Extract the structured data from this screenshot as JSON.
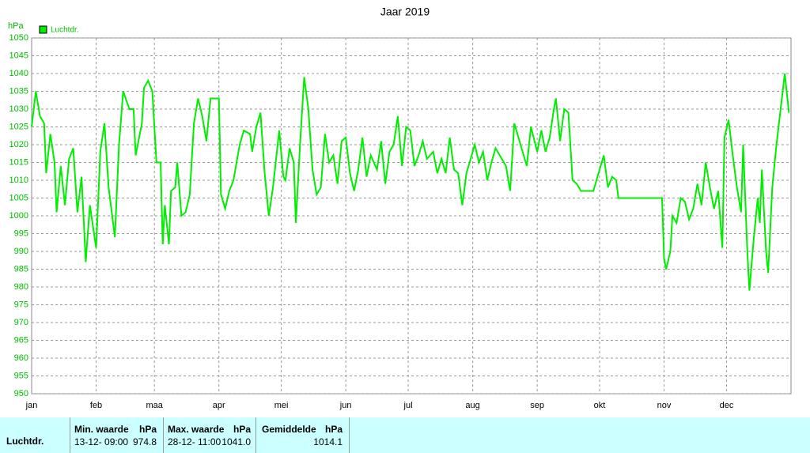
{
  "chart_data": {
    "type": "line",
    "title": "Jaar 2019",
    "y_label": "hPa",
    "xlim": [
      0,
      365
    ],
    "ylim": [
      950,
      1050
    ],
    "xticks": [
      {
        "value": 0,
        "label": "jan"
      },
      {
        "value": 31,
        "label": "feb"
      },
      {
        "value": 59,
        "label": "maa"
      },
      {
        "value": 90,
        "label": "apr"
      },
      {
        "value": 120,
        "label": "mei"
      },
      {
        "value": 151,
        "label": "jun"
      },
      {
        "value": 181,
        "label": "jul"
      },
      {
        "value": 212,
        "label": "aug"
      },
      {
        "value": 243,
        "label": "sep"
      },
      {
        "value": 273,
        "label": "okt"
      },
      {
        "value": 304,
        "label": "nov"
      },
      {
        "value": 334,
        "label": "dec"
      }
    ],
    "yticks": [
      950,
      955,
      960,
      965,
      970,
      975,
      980,
      985,
      990,
      995,
      1000,
      1005,
      1010,
      1015,
      1020,
      1025,
      1030,
      1035,
      1040,
      1045,
      1050
    ],
    "grid": true,
    "series": [
      {
        "name": "Luchtdr.",
        "color": "#00ee00",
        "x": [
          0,
          2,
          4,
          6,
          7,
          9,
          11,
          12,
          14,
          16,
          18,
          20,
          22,
          24,
          26,
          28,
          30,
          31,
          33,
          35,
          37,
          40,
          42,
          44,
          47,
          49,
          50,
          53,
          54,
          56,
          58,
          60,
          62,
          63,
          64,
          66,
          67,
          69,
          70,
          72,
          74,
          76,
          78,
          80,
          82,
          84,
          86,
          90,
          91,
          93,
          95,
          97,
          100,
          102,
          105,
          106,
          108,
          110,
          112,
          114,
          116,
          119,
          121,
          122,
          124,
          126,
          127,
          129,
          131,
          133,
          135,
          137,
          139,
          141,
          143,
          145,
          147,
          149,
          151,
          153,
          155,
          157,
          159,
          161,
          163,
          166,
          168,
          170,
          172,
          174,
          176,
          178,
          180,
          182,
          184,
          186,
          188,
          190,
          193,
          195,
          197,
          199,
          201,
          203,
          205,
          207,
          209,
          213,
          215,
          217,
          219,
          221,
          223,
          226,
          228,
          230,
          232,
          234,
          236,
          238,
          240,
          243,
          245,
          247,
          249,
          251,
          252,
          254,
          256,
          258,
          260,
          262,
          264,
          270,
          273,
          275,
          277,
          279,
          281,
          282,
          290,
          300,
          303,
          304,
          305,
          307,
          308,
          310,
          312,
          314,
          316,
          318,
          320,
          322,
          324,
          326,
          328,
          330,
          332,
          333,
          335,
          337,
          339,
          341,
          342,
          344,
          345,
          347,
          349,
          350,
          351,
          353,
          354,
          356,
          358,
          360,
          362,
          364
        ],
        "values": [
          1025,
          1035,
          1028,
          1026,
          1012,
          1023,
          1015,
          1001,
          1014,
          1003,
          1016,
          1019,
          1001,
          1011,
          987,
          1003,
          995,
          991,
          1018,
          1026,
          1008,
          994,
          1020,
          1035,
          1030,
          1030,
          1017,
          1026,
          1036,
          1038,
          1035,
          1015,
          1015,
          992,
          1003,
          992,
          1007,
          1008,
          1015,
          1000,
          1001,
          1006,
          1026,
          1033,
          1028,
          1021,
          1033,
          1033,
          1006,
          1002,
          1007,
          1010,
          1020,
          1024,
          1023,
          1018,
          1025,
          1029,
          1012,
          1000,
          1008,
          1024,
          1011,
          1010,
          1019,
          1015,
          998,
          1020,
          1039,
          1030,
          1013,
          1006,
          1008,
          1023,
          1015,
          1017,
          1009,
          1021,
          1022,
          1012,
          1007,
          1013,
          1022,
          1011,
          1017,
          1013,
          1021,
          1009,
          1018,
          1020,
          1028,
          1014,
          1025,
          1024,
          1014,
          1017,
          1021,
          1016,
          1018,
          1012,
          1016,
          1012,
          1022,
          1013,
          1012,
          1003,
          1012,
          1020,
          1015,
          1018,
          1010,
          1015,
          1019,
          1016,
          1014,
          1007,
          1026,
          1022,
          1018,
          1014,
          1025,
          1018,
          1024,
          1018,
          1022,
          1030,
          1033,
          1021,
          1030,
          1029,
          1010,
          1009,
          1007,
          1007,
          1013,
          1017,
          1008,
          1011,
          1010,
          1005,
          1005,
          1005,
          1005,
          988,
          985,
          990,
          1000,
          998,
          1005,
          1004,
          999,
          1002,
          1009,
          1003,
          1015,
          1008,
          1002,
          1007,
          991,
          1022,
          1027,
          1017,
          1008,
          1001,
          1020,
          990,
          979,
          993,
          1005,
          998,
          1013,
          990,
          984,
          1008,
          1020,
          1030,
          1040,
          1029
        ]
      }
    ]
  },
  "table": {
    "header": [
      "Min. waarde",
      "hPa",
      "Max. waarde",
      "hPa",
      "Gemiddelde",
      "hPa"
    ],
    "rows": [
      [
        "Luchtdr.",
        "13-12- 09:00",
        "974.8",
        "28-12- 11:00",
        "1041.0",
        "1014.1"
      ]
    ]
  }
}
